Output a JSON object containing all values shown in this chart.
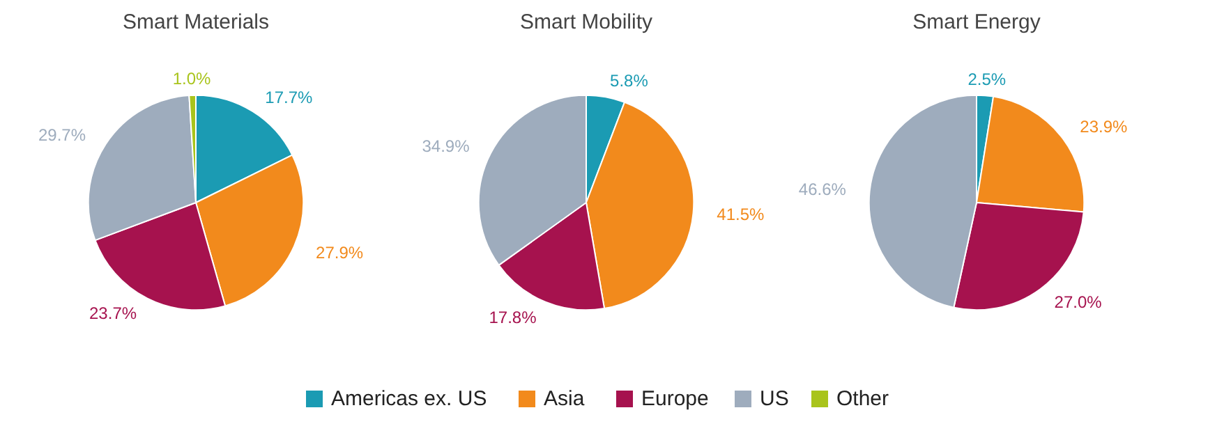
{
  "chart_data": [
    {
      "type": "pie",
      "title": "Smart Materials",
      "categories": [
        "Americas ex. US",
        "Asia",
        "Europe",
        "US",
        "Other"
      ],
      "values": [
        17.7,
        27.9,
        23.7,
        29.7,
        1.0
      ],
      "colors": [
        "#1b9bb3",
        "#f28a1c",
        "#a6124e",
        "#9eacbd",
        "#a9c41c"
      ],
      "value_labels": [
        "17.7%",
        "27.9%",
        "23.7%",
        "29.7%",
        "1.0%"
      ],
      "legend": "bottom"
    },
    {
      "type": "pie",
      "title": "Smart Mobility",
      "categories": [
        null,
        null,
        null,
        null
      ],
      "values": [
        5.8,
        41.5,
        17.8,
        34.9
      ],
      "colors": [
        "#1b9bb3",
        "#f28a1c",
        "#a6124e",
        "#9eacbd"
      ],
      "value_labels": [
        "5.8%",
        "41.5%",
        "17.8%",
        "34.9%"
      ]
    },
    {
      "type": "pie",
      "title": "Smart Energy",
      "categories": [
        null,
        null,
        null,
        null
      ],
      "values": [
        2.5,
        23.9,
        27.0,
        46.6
      ],
      "colors": [
        "#1b9bb3",
        "#f28a1c",
        "#a6124e",
        "#9eacbd"
      ],
      "value_labels": [
        "2.5%",
        "23.9%",
        "27.0%",
        "46.6%"
      ]
    }
  ]
}
